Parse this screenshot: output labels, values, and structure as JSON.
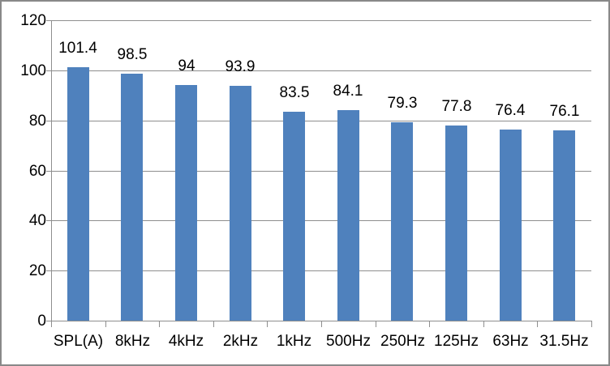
{
  "chart_data": {
    "type": "bar",
    "title": "",
    "xlabel": "",
    "ylabel": "",
    "categories": [
      "SPL(A)",
      "8kHz",
      "4kHz",
      "2kHz",
      "1kHz",
      "500Hz",
      "250Hz",
      "125Hz",
      "63Hz",
      "31.5Hz"
    ],
    "values": [
      101.4,
      98.5,
      94,
      93.9,
      83.5,
      84.1,
      79.3,
      77.8,
      76.4,
      76.1
    ],
    "data_labels": [
      "101.4",
      "98.5",
      "94",
      "93.9",
      "83.5",
      "84.1",
      "79.3",
      "77.8",
      "76.4",
      "76.1"
    ],
    "ylim": [
      0,
      120
    ],
    "yticks": [
      0,
      20,
      40,
      60,
      80,
      100,
      120
    ],
    "grid": true,
    "legend_position": "none",
    "colors": {
      "bar_fill": "#4f81bd",
      "gridline": "#8e8e8e",
      "axis": "#8e8e8e",
      "label_text": "#000000",
      "frame_border": "#898989",
      "background": "#ffffff"
    }
  }
}
